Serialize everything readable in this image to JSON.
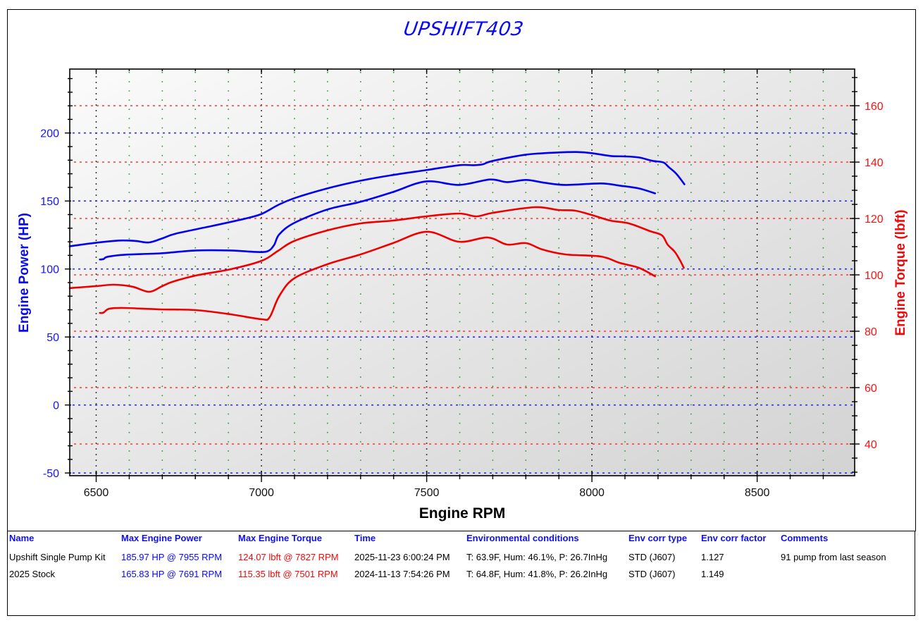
{
  "title": "UPSHIFT403",
  "colors": {
    "power": "#0000ee",
    "torque": "#ee0000",
    "title": "#0a0af0"
  },
  "axes": {
    "x_title": "Engine RPM",
    "y_left_title": "Engine Power (HP)",
    "y_right_title": "Engine Torque (lbft)"
  },
  "table": {
    "headers": [
      "Name",
      "Max Engine Power",
      "Max Engine Torque",
      "Time",
      "Environmental conditions",
      "Env corr type",
      "Env corr factor",
      "Comments"
    ],
    "rows": [
      {
        "name": "Upshift Single Pump Kit",
        "max_power": "185.97 HP @ 7955 RPM",
        "max_torque": "124.07 lbft @ 7827 RPM",
        "time": "2025-11-23 6:00:24 PM",
        "env": "T: 63.9F, Hum: 46.1%, P: 26.7InHg",
        "corr_type": "STD (J607)",
        "corr_factor": "1.127",
        "comments": "91 pump from last season"
      },
      {
        "name": "2025 Stock",
        "max_power": "165.83 HP @ 7691 RPM",
        "max_torque": "115.35 lbft @ 7501 RPM",
        "time": "2024-11-13 7:54:26 PM",
        "env": "T: 64.8F, Hum: 41.8%, P: 26.2InHg",
        "corr_type": "STD (J607)",
        "corr_factor": "1.149",
        "comments": ""
      }
    ]
  },
  "chart_data": {
    "type": "line",
    "title": "UPSHIFT403",
    "xlabel": "Engine RPM",
    "ylabel": "Engine Power (HP)",
    "ylabel_right": "Engine Torque (lbft)",
    "xlim": [
      6420,
      8795
    ],
    "ylim": [
      -52,
      247
    ],
    "ylim_right": [
      28.75,
      173
    ],
    "x_ticks": [
      6500,
      7000,
      7500,
      8000,
      8500
    ],
    "x_minor_step": 100,
    "y_ticks": [
      -50,
      0,
      50,
      100,
      150,
      200
    ],
    "y_minor_step": 10,
    "y_right_ticks": [
      40,
      60,
      80,
      100,
      120,
      140,
      160
    ],
    "y_right_minor_step": 5,
    "grid": true,
    "legend": "table below chart",
    "series": [
      {
        "name": "Upshift Single Pump Kit - Engine Power (HP)",
        "axis": "left",
        "color": "#0000ee",
        "points": [
          [
            6420,
            116.7
          ],
          [
            6500,
            119.3
          ],
          [
            6570,
            120.9
          ],
          [
            6620,
            120.6
          ],
          [
            6660,
            119.5
          ],
          [
            6700,
            122.5
          ],
          [
            6741,
            126
          ],
          [
            6848,
            131.5
          ],
          [
            6950,
            137
          ],
          [
            7001,
            140.5
          ],
          [
            7050,
            147
          ],
          [
            7099,
            152
          ],
          [
            7199,
            159.2
          ],
          [
            7300,
            164.9
          ],
          [
            7398,
            169.1
          ],
          [
            7498,
            172.7
          ],
          [
            7598,
            176.3
          ],
          [
            7643,
            176.3
          ],
          [
            7670,
            177
          ],
          [
            7700,
            179.5
          ],
          [
            7801,
            184.1
          ],
          [
            7899,
            185.7
          ],
          [
            7955,
            186
          ],
          [
            7999,
            185.2
          ],
          [
            8056,
            183.1
          ],
          [
            8100,
            182.8
          ],
          [
            8142,
            182
          ],
          [
            8184,
            179.5
          ],
          [
            8216,
            178.4
          ],
          [
            8233,
            174.8
          ],
          [
            8255,
            170.1
          ],
          [
            8280,
            162.3
          ]
        ]
      },
      {
        "name": "2025 Stock - Engine Power (HP)",
        "axis": "left",
        "color": "#0000ee",
        "points": [
          [
            6511,
            107
          ],
          [
            6522,
            107.3
          ],
          [
            6535,
            109
          ],
          [
            6587,
            110.5
          ],
          [
            6694,
            111.5
          ],
          [
            6801,
            113.6
          ],
          [
            6907,
            113.6
          ],
          [
            6980,
            112.6
          ],
          [
            7018,
            113
          ],
          [
            7038,
            117.5
          ],
          [
            7054,
            125.5
          ],
          [
            7099,
            133.8
          ],
          [
            7199,
            143.7
          ],
          [
            7300,
            149.4
          ],
          [
            7398,
            156.6
          ],
          [
            7498,
            164.4
          ],
          [
            7598,
            161.8
          ],
          [
            7691,
            165.8
          ],
          [
            7743,
            163.9
          ],
          [
            7801,
            165.5
          ],
          [
            7856,
            163.4
          ],
          [
            7920,
            161.8
          ],
          [
            8027,
            162.9
          ],
          [
            8084,
            161.3
          ],
          [
            8142,
            159.2
          ],
          [
            8191,
            155.6
          ]
        ]
      },
      {
        "name": "Upshift Single Pump Kit - Engine Torque (lbft)",
        "axis": "right",
        "color": "#ee0000",
        "points": [
          [
            6420,
            95.3
          ],
          [
            6500,
            96
          ],
          [
            6553,
            96.5
          ],
          [
            6610,
            95.8
          ],
          [
            6660,
            94
          ],
          [
            6700,
            96
          ],
          [
            6730,
            97.5
          ],
          [
            6801,
            99.75
          ],
          [
            6907,
            102
          ],
          [
            7001,
            105
          ],
          [
            7050,
            108.5
          ],
          [
            7099,
            112
          ],
          [
            7199,
            115.75
          ],
          [
            7300,
            118.25
          ],
          [
            7398,
            119.25
          ],
          [
            7498,
            120.75
          ],
          [
            7598,
            121.75
          ],
          [
            7651,
            120.75
          ],
          [
            7700,
            122
          ],
          [
            7827,
            124
          ],
          [
            7899,
            123
          ],
          [
            7950,
            122.75
          ],
          [
            7999,
            121.25
          ],
          [
            8056,
            119.25
          ],
          [
            8112,
            118.25
          ],
          [
            8176,
            115.5
          ],
          [
            8212,
            114
          ],
          [
            8229,
            110.75
          ],
          [
            8250,
            108.25
          ],
          [
            8265,
            105.5
          ],
          [
            8278,
            102.5
          ]
        ]
      },
      {
        "name": "2025 Stock - Engine Torque (lbft)",
        "axis": "right",
        "color": "#ee0000",
        "points": [
          [
            6511,
            86.5
          ],
          [
            6522,
            86.6
          ],
          [
            6540,
            88
          ],
          [
            6587,
            88.25
          ],
          [
            6694,
            87.75
          ],
          [
            6801,
            87.5
          ],
          [
            6907,
            86
          ],
          [
            7001,
            84.25
          ],
          [
            7025,
            85
          ],
          [
            7054,
            92.5
          ],
          [
            7099,
            98.75
          ],
          [
            7199,
            103.75
          ],
          [
            7300,
            107.25
          ],
          [
            7398,
            111.25
          ],
          [
            7501,
            115.3
          ],
          [
            7598,
            111.75
          ],
          [
            7685,
            113.25
          ],
          [
            7743,
            110.75
          ],
          [
            7801,
            111.25
          ],
          [
            7850,
            109
          ],
          [
            7920,
            107.25
          ],
          [
            8027,
            106.5
          ],
          [
            8084,
            104.25
          ],
          [
            8142,
            102.5
          ],
          [
            8191,
            99.5
          ]
        ]
      }
    ]
  }
}
